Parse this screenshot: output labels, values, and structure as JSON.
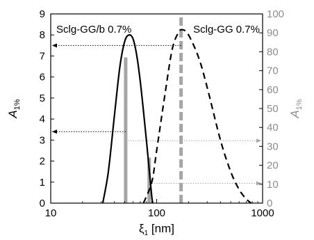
{
  "chart_data": {
    "type": "line",
    "x_axis": {
      "label": "ξ",
      "label_sub": "1",
      "label_unit": " [nm]",
      "scale": "log",
      "range": [
        10,
        1000
      ],
      "ticks": [
        10,
        100,
        1000
      ],
      "tick_labels": [
        "10",
        "100",
        "1000"
      ]
    },
    "y_left": {
      "label": "A",
      "label_sub": "1%",
      "range": [
        0,
        9
      ],
      "ticks": [
        0,
        1,
        2,
        3,
        4,
        5,
        6,
        7,
        8,
        9
      ],
      "tick_labels": [
        "0",
        "1",
        "2",
        "3",
        "4",
        "5",
        "6",
        "7",
        "8",
        "9"
      ]
    },
    "y_right": {
      "label": "A",
      "label_sub": "1%",
      "range": [
        0,
        100
      ],
      "ticks": [
        0,
        10,
        20,
        30,
        40,
        50,
        60,
        70,
        80,
        90,
        100
      ],
      "tick_labels": [
        "0",
        "10",
        "20",
        "30",
        "40",
        "50",
        "60",
        "70",
        "80",
        "90",
        "100"
      ]
    },
    "series": [
      {
        "name": "Sclg-GG/b 0.7%",
        "axis": "left",
        "style": "solid",
        "color": "#000000",
        "points": [
          [
            31,
            0.0
          ],
          [
            35,
            1.5
          ],
          [
            40,
            4.2
          ],
          [
            45,
            6.5
          ],
          [
            50,
            7.7
          ],
          [
            55,
            8.0
          ],
          [
            60,
            7.8
          ],
          [
            65,
            7.0
          ],
          [
            70,
            5.8
          ],
          [
            75,
            4.4
          ],
          [
            80,
            3.0
          ],
          [
            85,
            1.6
          ],
          [
            90,
            0.3
          ],
          [
            92,
            0.0
          ]
        ]
      },
      {
        "name": "Sclg-GG 0.7%",
        "axis": "left",
        "style": "dashed",
        "color": "#000000",
        "points": [
          [
            75,
            0.0
          ],
          [
            90,
            1.0
          ],
          [
            100,
            2.5
          ],
          [
            120,
            5.2
          ],
          [
            140,
            7.3
          ],
          [
            160,
            8.1
          ],
          [
            175,
            8.25
          ],
          [
            200,
            8.0
          ],
          [
            250,
            6.9
          ],
          [
            300,
            5.5
          ],
          [
            400,
            3.0
          ],
          [
            500,
            1.5
          ],
          [
            600,
            0.65
          ],
          [
            700,
            0.2
          ],
          [
            780,
            0.0
          ]
        ]
      }
    ],
    "bars": [
      {
        "series": "Sclg-GG/b 0.7%",
        "x": 51,
        "y_right": 77,
        "style": "solid",
        "color": "#a6a6a6"
      },
      {
        "series": "Sclg-GG/b 0.7%",
        "x": 85,
        "y_right": 24,
        "style": "solid",
        "color": "#a6a6a6"
      },
      {
        "series": "Sclg-GG 0.7%",
        "x": 170,
        "y_right": 100,
        "style": "dashed",
        "color": "#a6a6a6"
      }
    ],
    "arrows": [
      {
        "direction": "to-left-axis",
        "from_x": 170,
        "level_left": 7.5,
        "color": "#000000"
      },
      {
        "direction": "to-left-axis",
        "from_x": 51,
        "level_left": 3.4,
        "color": "#000000"
      },
      {
        "direction": "to-right-axis",
        "from_x": 51,
        "level_right": 33,
        "color": "#a6a6a6"
      },
      {
        "direction": "to-right-axis",
        "from_x": 85,
        "level_right": 10.5,
        "color": "#a6a6a6"
      }
    ],
    "annotations": [
      {
        "text": "Sclg-GG/b 0.7%",
        "anchor": "top-left"
      },
      {
        "text": "Sclg-GG 0.7%",
        "anchor": "top-right"
      }
    ],
    "grid": false,
    "colors": {
      "primary": "#000000",
      "secondary": "#a6a6a6",
      "right_axis_text": "#8c8c8c"
    }
  }
}
